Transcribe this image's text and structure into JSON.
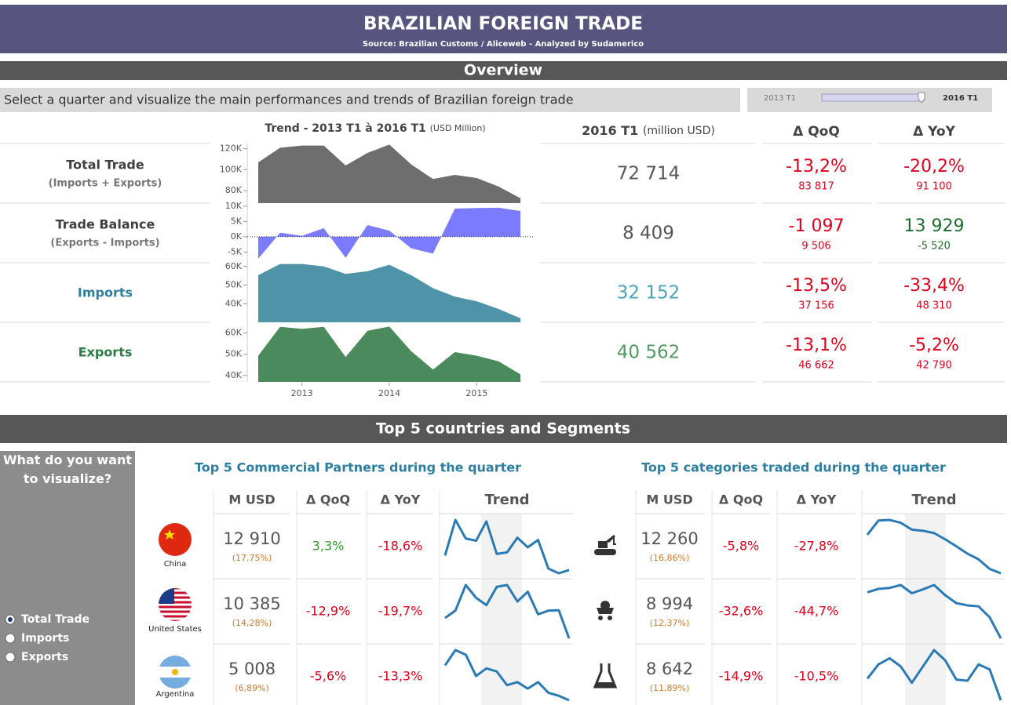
{
  "header": {
    "title": "BRAZILIAN FOREIGN TRADE",
    "source": "Source: Brazilian Customs / Aliceweb -  Analyzed by Sudamerico"
  },
  "overview": {
    "title": "Overview",
    "prompt": "Select a quarter and visualize the main performances and trends of Brazilian foreign trade",
    "slider": {
      "start": "2013 T1",
      "end": "2016 T1"
    },
    "trend_title": "Trend - 2013 T1 à 2016 T1",
    "trend_unit": "(USD Million)",
    "current_title": "2016 T1",
    "current_unit": "(million USD)",
    "qoq_title": "Δ QoQ",
    "yoy_title": "Δ YoY",
    "x": [
      2013,
      2013.25,
      2013.5,
      2013.75,
      2014,
      2014.25,
      2014.5,
      2014.75,
      2015,
      2015.25,
      2015.5,
      2015.75,
      2016
    ],
    "xlim": [
      2013,
      2016
    ],
    "xticks": [
      {
        "value": 2013.5,
        "label": "2013"
      },
      {
        "value": 2014.5,
        "label": "2014"
      },
      {
        "value": 2015.5,
        "label": "2015"
      }
    ],
    "rows": [
      {
        "label": "Total Trade",
        "sublabel": "(Imports + Exports)",
        "label_color": "#404040",
        "value": "72 714",
        "color": "#555555",
        "qoq": "-13,2%",
        "qoq_base": "83 817",
        "yoy": "-20,2%",
        "yoy_base": "91 100",
        "trend": {
          "color": "#6e6e6e",
          "ylim": [
            68000,
            125000
          ],
          "yticks": [
            {
              "value": 80000,
              "label": "80K"
            },
            {
              "value": 100000,
              "label": "100K"
            },
            {
              "value": 120000,
              "label": "120K"
            }
          ],
          "values": [
            107000,
            121000,
            123000,
            123000,
            104000,
            116000,
            124000,
            105000,
            91100,
            95000,
            92000,
            83817,
            72714
          ]
        }
      },
      {
        "label": "Trade Balance",
        "sublabel": "(Exports - Imports)",
        "label_color": "#404040",
        "value": "8 409",
        "color": "#555555",
        "qoq": "-1 097",
        "qoq_base": "9 506",
        "yoy": "13 929",
        "yoy_base": "-5 520",
        "trend": {
          "color": "#7b7bff",
          "ylim": [
            -8500,
            11000
          ],
          "yticks": [
            {
              "value": 10000,
              "label": "10K"
            },
            {
              "value": 5000,
              "label": "5K"
            },
            {
              "value": 0,
              "label": "0K"
            },
            {
              "value": -5000,
              "label": "-5K"
            }
          ],
          "values": [
            -7200,
            1300,
            300,
            2800,
            -6900,
            3800,
            2000,
            -3800,
            -5520,
            9200,
            9400,
            9506,
            8409
          ]
        }
      },
      {
        "label": "Imports",
        "label_color": "#2e7fa0",
        "value": "32 152",
        "color": "#4aa3be",
        "qoq": "-13,5%",
        "qoq_base": "37 156",
        "yoy": "-33,4%",
        "yoy_base": "48 310",
        "trend": {
          "color": "#4e93a8",
          "ylim": [
            30000,
            62000
          ],
          "yticks": [
            {
              "value": 40000,
              "label": "40K"
            },
            {
              "value": 50000,
              "label": "50K"
            },
            {
              "value": 60000,
              "label": "60K"
            }
          ],
          "values": [
            55300,
            61300,
            61300,
            60000,
            56000,
            57400,
            60900,
            55300,
            48310,
            43800,
            41300,
            37156,
            32152
          ]
        }
      },
      {
        "label": "Exports",
        "label_color": "#2e7d45",
        "value": "40 562",
        "color": "#4f9a5f",
        "qoq": "-13,1%",
        "qoq_base": "46 662",
        "yoy": "-5,2%",
        "yoy_base": "42 790",
        "trend": {
          "color": "#4a8a5d",
          "ylim": [
            37000,
            65000
          ],
          "yticks": [
            {
              "value": 40000,
              "label": "40K"
            },
            {
              "value": 50000,
              "label": "50K"
            },
            {
              "value": 60000,
              "label": "60K"
            }
          ],
          "values": [
            49300,
            62900,
            61900,
            62900,
            48700,
            61000,
            63000,
            51400,
            42790,
            51000,
            49300,
            46662,
            40562
          ]
        }
      }
    ]
  },
  "top5": {
    "title": "Top 5 countries and Segments",
    "question": "What do you want to visualize?",
    "options": [
      "Total Trade",
      "Imports",
      "Exports"
    ],
    "selected_index": 0,
    "partners": {
      "title": "Top 5 Commercial Partners during the quarter",
      "columns": [
        "M USD",
        "Δ QoQ",
        "Δ YoY",
        "Trend"
      ],
      "rows": [
        {
          "name": "China",
          "value": "12 910",
          "share": "(17,75%)",
          "qoq": "3,3%",
          "yoy": "-18,6%",
          "trend": [
            14800,
            19400,
            17000,
            16700,
            19200,
            15000,
            15200,
            17100,
            15860,
            16800,
            13100,
            12497,
            12910
          ]
        },
        {
          "name": "United States",
          "value": "10 385",
          "share": "(14,28%)",
          "qoq": "-12,9%",
          "yoy": "-19,7%",
          "trend": [
            11500,
            11900,
            13300,
            12600,
            12200,
            13200,
            13300,
            12400,
            12933,
            11700,
            11900,
            11923,
            10385
          ]
        },
        {
          "name": "Argentina",
          "value": "5 008",
          "share": "(6,89%)",
          "qoq": "-5,6%",
          "yoy": "-13,3%",
          "trend": [
            7300,
            8300,
            8000,
            6600,
            7100,
            6900,
            6000,
            6200,
            5775,
            6200,
            5500,
            5305,
            5008
          ]
        }
      ]
    },
    "categories": {
      "title": "Top 5 categories traded during the quarter",
      "columns": [
        "M USD",
        "Δ QoQ",
        "Δ YoY",
        "Trend"
      ],
      "rows": [
        {
          "value": "12 260",
          "share": "(16,86%)",
          "qoq": "-5,8%",
          "yoy": "-27,8%",
          "trend": [
            19000,
            21500,
            21600,
            21100,
            19900,
            19700,
            19300,
            18200,
            16981,
            15700,
            14700,
            13015,
            12260
          ]
        },
        {
          "value": "8 994",
          "share": "(12,37%)",
          "qoq": "-32,6%",
          "yoy": "-44,7%",
          "trend": [
            18500,
            19200,
            19400,
            20000,
            18300,
            19100,
            20000,
            17900,
            16267,
            15800,
            15600,
            13340,
            8994
          ]
        },
        {
          "value": "8 642",
          "share": "(11,89%)",
          "qoq": "-14,9%",
          "yoy": "-10,5%",
          "trend": [
            9700,
            10400,
            10700,
            10300,
            9500,
            10300,
            11100,
            10600,
            9656,
            9600,
            10400,
            10155,
            8642
          ]
        }
      ]
    }
  }
}
